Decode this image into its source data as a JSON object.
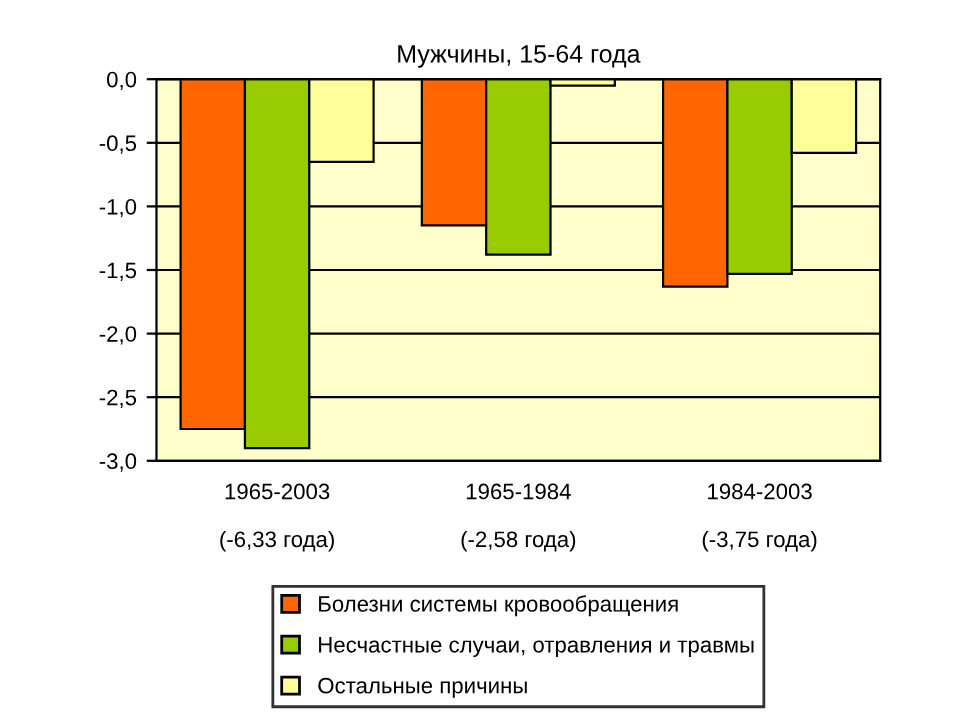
{
  "chart_data": {
    "type": "bar",
    "title": "Мужчины, 15-64 года",
    "categories": [
      "1965-2003\n\n(-6,33 года)",
      "1965-1984\n\n(-2,58 года)",
      "1984-2003\n\n(-3,75 года)"
    ],
    "series": [
      {
        "name": "Болезни системы кровообращения",
        "color": "#ff6600",
        "values": [
          -2.75,
          -1.15,
          -1.63
        ]
      },
      {
        "name": "Несчастные случаи, отравления и травмы",
        "color": "#99cc00",
        "values": [
          -2.9,
          -1.38,
          -1.53
        ]
      },
      {
        "name": "Остальные причины",
        "color": "#ffff99",
        "values": [
          -0.65,
          -0.05,
          -0.58
        ]
      }
    ],
    "ylim": [
      -3.0,
      0.0
    ],
    "yticks": [
      {
        "value": -3.0,
        "label": "-3,0"
      },
      {
        "value": -2.5,
        "label": "-2,5"
      },
      {
        "value": -2.0,
        "label": "-2,0"
      },
      {
        "value": -1.5,
        "label": "-1,5"
      },
      {
        "value": -1.0,
        "label": "-1,0"
      },
      {
        "value": -0.5,
        "label": "-0,5"
      },
      {
        "value": 0.0,
        "label": "0,0"
      }
    ],
    "grid": "y",
    "legend": "bottom"
  }
}
